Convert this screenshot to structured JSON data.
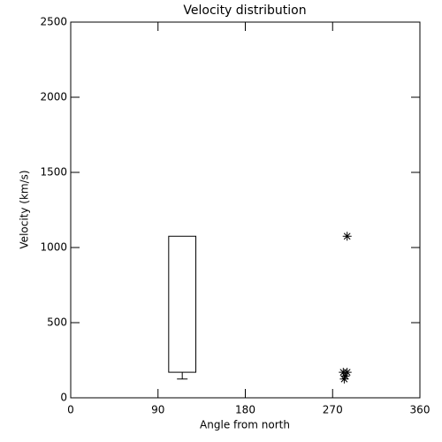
{
  "chart_data": {
    "type": "box",
    "title": "Velocity distribution",
    "x_label": "Angle from north",
    "y_label": "Velocity (km/s)",
    "xlim": [
      0,
      360
    ],
    "xticks": [
      0,
      90,
      180,
      270,
      360
    ],
    "ylim": [
      0,
      2500
    ],
    "yticks": [
      0,
      500,
      1000,
      1500,
      2000,
      2500
    ],
    "color": "#000000",
    "box": {
      "x_left": 101,
      "x_right": 129,
      "q1": 170,
      "q3": 1075,
      "whisker_low": 125
    },
    "scatter": {
      "x": [
        285,
        281,
        285,
        283,
        282
      ],
      "values": [
        1075,
        170,
        170,
        145,
        125
      ]
    }
  }
}
